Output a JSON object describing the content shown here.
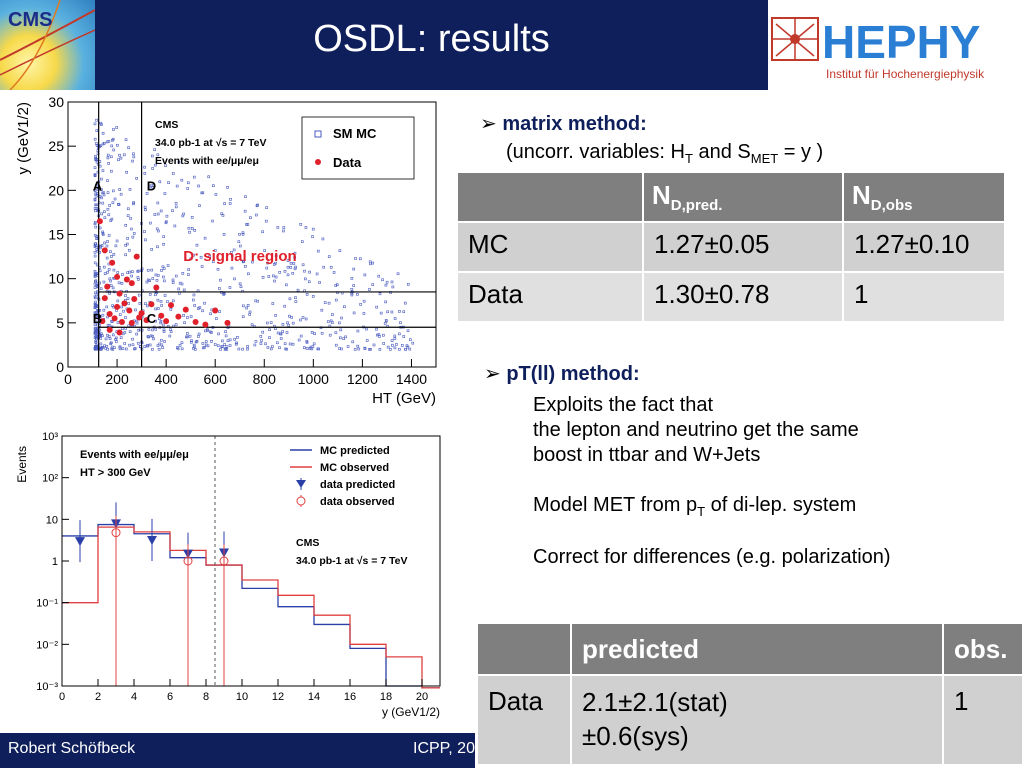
{
  "header": {
    "title": "OSDL: results"
  },
  "logos": {
    "cms_text": "CMS",
    "hephy_text": "HEPHY",
    "hephy_subtitle": "Institut für Hochenergiephysik"
  },
  "footer": {
    "author": "Robert Schöfbeck",
    "conference": "ICPP, 20"
  },
  "scatter_plot": {
    "legend_box": [
      "CMS",
      "34.0 pb-1 at √s = 7 TeV",
      "Events with ee/μμ/eμ"
    ],
    "legend_items": [
      "SM MC",
      "Data"
    ],
    "regions": [
      "A",
      "B",
      "C",
      "D"
    ],
    "signal_label": "D: signal region"
  },
  "hist_plot": {
    "info_box": [
      "Events with ee/μμ/eμ",
      "HT > 300 GeV"
    ],
    "legend_items": [
      "MC predicted",
      "MC observed",
      "data predicted",
      "data observed"
    ],
    "cms_box": [
      "CMS",
      "34.0 pb-1 at √s = 7 TeV"
    ]
  },
  "matrix": {
    "title": "matrix method:",
    "subtitle_pre": "(uncorr. variables: H",
    "subtitle_sub1": "T",
    "subtitle_mid": " and S",
    "subtitle_sub2": "MET",
    "subtitle_post": " = y )",
    "headers": [
      "",
      "N",
      "N"
    ],
    "header_subs": [
      "",
      "D,pred.",
      "D,obs"
    ],
    "rows": [
      [
        "MC",
        "1.27±0.05",
        "1.27±0.10"
      ],
      [
        "Data",
        "1.30±0.78",
        "1"
      ]
    ]
  },
  "pt_method": {
    "title": "pT(ll) method:",
    "line1": "Exploits the fact that",
    "line2": "the lepton and neutrino get the same",
    "line3": "boost in ttbar and W+Jets",
    "line4_pre": "Model MET from p",
    "line4_sub": "T",
    "line4_post": " of di-lep. system",
    "line5": "Correct for differences (e.g. polarization)"
  },
  "pred_table": {
    "headers": [
      "",
      "predicted",
      "obs."
    ],
    "row_label": "Data",
    "pred_line1": "2.1±2.1(stat)",
    "pred_line2": "±0.6(sys)",
    "obs": "1"
  },
  "chart_data": [
    {
      "type": "scatter",
      "xlabel": "HT (GeV)",
      "ylabel": "y (GeV1/2)",
      "xlim": [
        0,
        1500
      ],
      "ylim": [
        0,
        30
      ],
      "xticks": [
        0,
        200,
        400,
        600,
        800,
        1000,
        1200,
        1400
      ],
      "yticks": [
        0,
        5,
        10,
        15,
        20,
        25,
        30
      ],
      "region_cuts": {
        "ht": [
          125,
          300
        ],
        "y": [
          4.5,
          8.5
        ]
      },
      "series": [
        {
          "name": "SM MC",
          "marker": "open square",
          "color": "#4a5bbf"
        },
        {
          "name": "Data",
          "marker": "filled circle",
          "color": "#e0202a",
          "points": [
            [
              140,
              5.2
            ],
            [
              150,
              7.8
            ],
            [
              160,
              9.1
            ],
            [
              170,
              6.0
            ],
            [
              180,
              11.8
            ],
            [
              190,
              5.5
            ],
            [
              200,
              6.8
            ],
            [
              210,
              8.3
            ],
            [
              220,
              5.1
            ],
            [
              230,
              7.2
            ],
            [
              240,
              9.9
            ],
            [
              250,
              6.4
            ],
            [
              260,
              5.0
            ],
            [
              270,
              7.7
            ],
            [
              280,
              12.5
            ],
            [
              290,
              5.6
            ],
            [
              300,
              6.1
            ],
            [
              320,
              5.3
            ],
            [
              340,
              7.1
            ],
            [
              360,
              9.0
            ],
            [
              380,
              5.8
            ],
            [
              400,
              5.2
            ],
            [
              420,
              7.0
            ],
            [
              450,
              5.7
            ],
            [
              480,
              6.5
            ],
            [
              520,
              5.1
            ],
            [
              560,
              4.8
            ],
            [
              600,
              6.4
            ],
            [
              650,
              5.0
            ],
            [
              130,
              16.5
            ],
            [
              150,
              13.2
            ],
            [
              200,
              10.2
            ],
            [
              260,
              9.5
            ],
            [
              170,
              4.2
            ],
            [
              210,
              3.9
            ]
          ]
        }
      ]
    },
    {
      "type": "line",
      "xlabel": "y (GeV1/2)",
      "ylabel": "Events",
      "xlim": [
        0,
        21
      ],
      "ylim_log10": [
        -3,
        3
      ],
      "xticks": [
        0,
        2,
        4,
        6,
        8,
        10,
        12,
        14,
        16,
        18,
        20
      ],
      "yticks_log10": [
        -3,
        -2,
        -1,
        0,
        1,
        2,
        3
      ],
      "bin_edges": [
        0,
        2,
        4,
        6,
        8,
        10,
        12,
        14,
        16,
        18,
        20,
        21
      ],
      "series": [
        {
          "name": "MC predicted",
          "color": "#2b3fa8",
          "values": [
            4.0,
            7.5,
            4.5,
            1.2,
            0.8,
            0.22,
            0.08,
            0.03,
            0.008,
            0.001,
            0.0009
          ]
        },
        {
          "name": "MC observed",
          "color": "#e04040",
          "values": [
            0.1,
            6.5,
            5.0,
            1.8,
            0.8,
            0.35,
            0.15,
            0.05,
            0.01,
            0.005,
            0.0009
          ]
        },
        {
          "name": "data predicted",
          "color": "#2b3fa8",
          "x": [
            1,
            3,
            5,
            7,
            9
          ],
          "values": [
            3.0,
            8.0,
            3.2,
            1.5,
            1.6
          ]
        },
        {
          "name": "data observed",
          "color": "#e04040",
          "x": [
            3,
            7,
            9
          ],
          "values": [
            4.8,
            1.0,
            1.0
          ]
        }
      ]
    }
  ]
}
